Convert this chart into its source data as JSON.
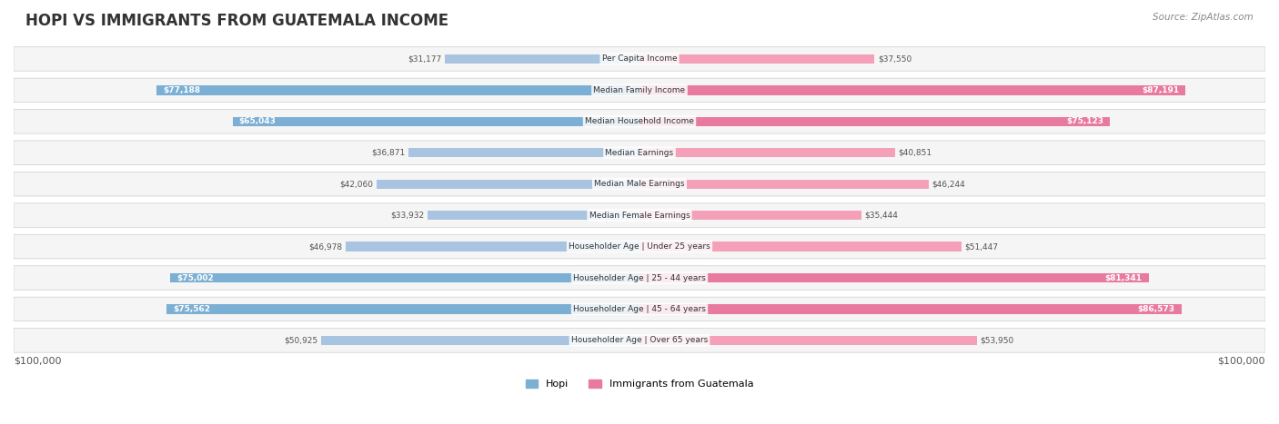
{
  "title": "HOPI VS IMMIGRANTS FROM GUATEMALA INCOME",
  "source": "Source: ZipAtlas.com",
  "categories": [
    "Per Capita Income",
    "Median Family Income",
    "Median Household Income",
    "Median Earnings",
    "Median Male Earnings",
    "Median Female Earnings",
    "Householder Age | Under 25 years",
    "Householder Age | 25 - 44 years",
    "Householder Age | 45 - 64 years",
    "Householder Age | Over 65 years"
  ],
  "hopi_values": [
    31177,
    77188,
    65043,
    36871,
    42060,
    33932,
    46978,
    75002,
    75562,
    50925
  ],
  "guatemala_values": [
    37550,
    87191,
    75123,
    40851,
    46244,
    35444,
    51447,
    81341,
    86573,
    53950
  ],
  "hopi_labels": [
    "$31,177",
    "$77,188",
    "$65,043",
    "$36,871",
    "$42,060",
    "$33,932",
    "$46,978",
    "$75,002",
    "$75,562",
    "$50,925"
  ],
  "guatemala_labels": [
    "$37,550",
    "$87,191",
    "$75,123",
    "$40,851",
    "$46,244",
    "$35,444",
    "$51,447",
    "$81,341",
    "$86,573",
    "$53,950"
  ],
  "hopi_color": "#a8c4e0",
  "hopi_color_dark": "#7bafd4",
  "guatemala_color": "#f4a0b8",
  "guatemala_color_dark": "#e87aa0",
  "max_value": 100000,
  "background_color": "#ffffff",
  "row_bg_color": "#f0f0f0",
  "legend_hopi": "Hopi",
  "legend_guatemala": "Immigrants from Guatemala",
  "x_label_left": "$100,000",
  "x_label_right": "$100,000"
}
